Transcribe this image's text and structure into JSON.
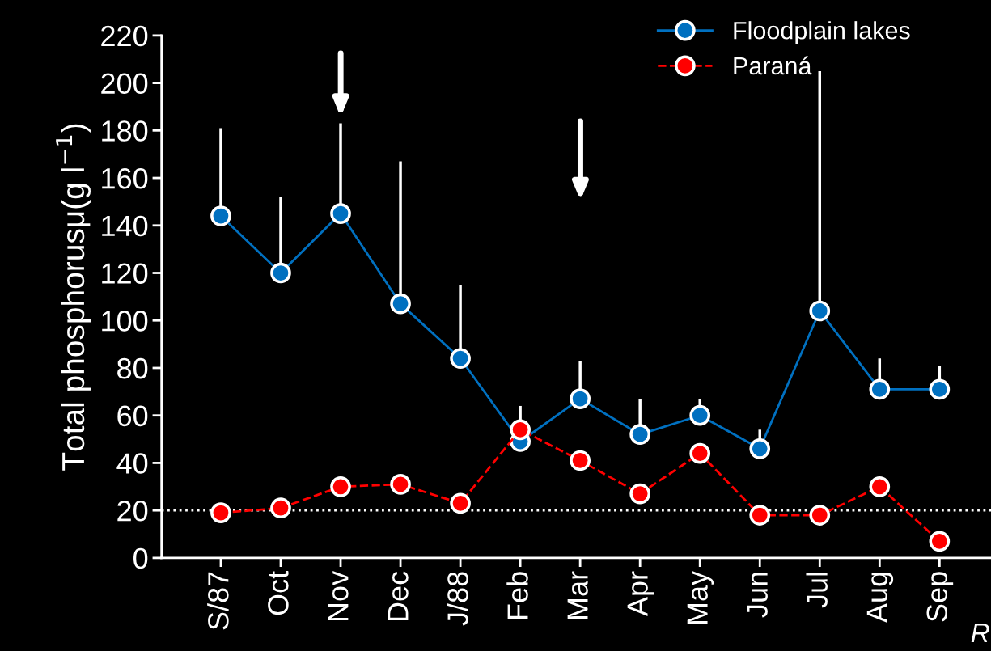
{
  "chart_data": {
    "type": "line",
    "ylabel": "Total phosphorusμ(g l$^{−1}$)",
    "categories": [
      "S/87",
      "Oct",
      "Nov",
      "Dec",
      "J/88",
      "Feb",
      "Mar",
      "Apr",
      "May",
      "Jun",
      "Jul",
      "Aug",
      "Sep"
    ],
    "series": [
      {
        "name": "Floodplain lakes",
        "color": "#0070c0",
        "line_style": "solid",
        "values": [
          144,
          120,
          145,
          107,
          84,
          49,
          67,
          52,
          60,
          46,
          104,
          71,
          71
        ],
        "errors": [
          [
            144,
            181
          ],
          [
            120,
            152
          ],
          [
            145,
            183
          ],
          [
            107,
            167
          ],
          [
            84,
            115
          ],
          [
            49,
            64
          ],
          [
            67,
            83
          ],
          [
            52,
            67
          ],
          [
            60,
            67
          ],
          [
            46,
            54
          ],
          [
            104,
            205
          ],
          [
            71,
            84
          ],
          [
            71,
            81
          ]
        ]
      },
      {
        "name": "Paraná",
        "color": "#ff0000",
        "line_style": "dashed",
        "values": [
          19,
          21,
          30,
          31,
          23,
          54,
          41,
          27,
          44,
          18,
          18,
          30,
          7
        ]
      }
    ],
    "ylim": [
      0,
      220
    ],
    "yticks": [
      0,
      20,
      40,
      60,
      80,
      100,
      120,
      140,
      160,
      180,
      200,
      220
    ],
    "ref_lines": [
      {
        "axis": "y",
        "value": 20,
        "color": "#ffffff",
        "line_style": "dotted"
      }
    ],
    "annotations": [
      "R"
    ],
    "marker": "circle",
    "legend": "top right",
    "grid": false
  }
}
